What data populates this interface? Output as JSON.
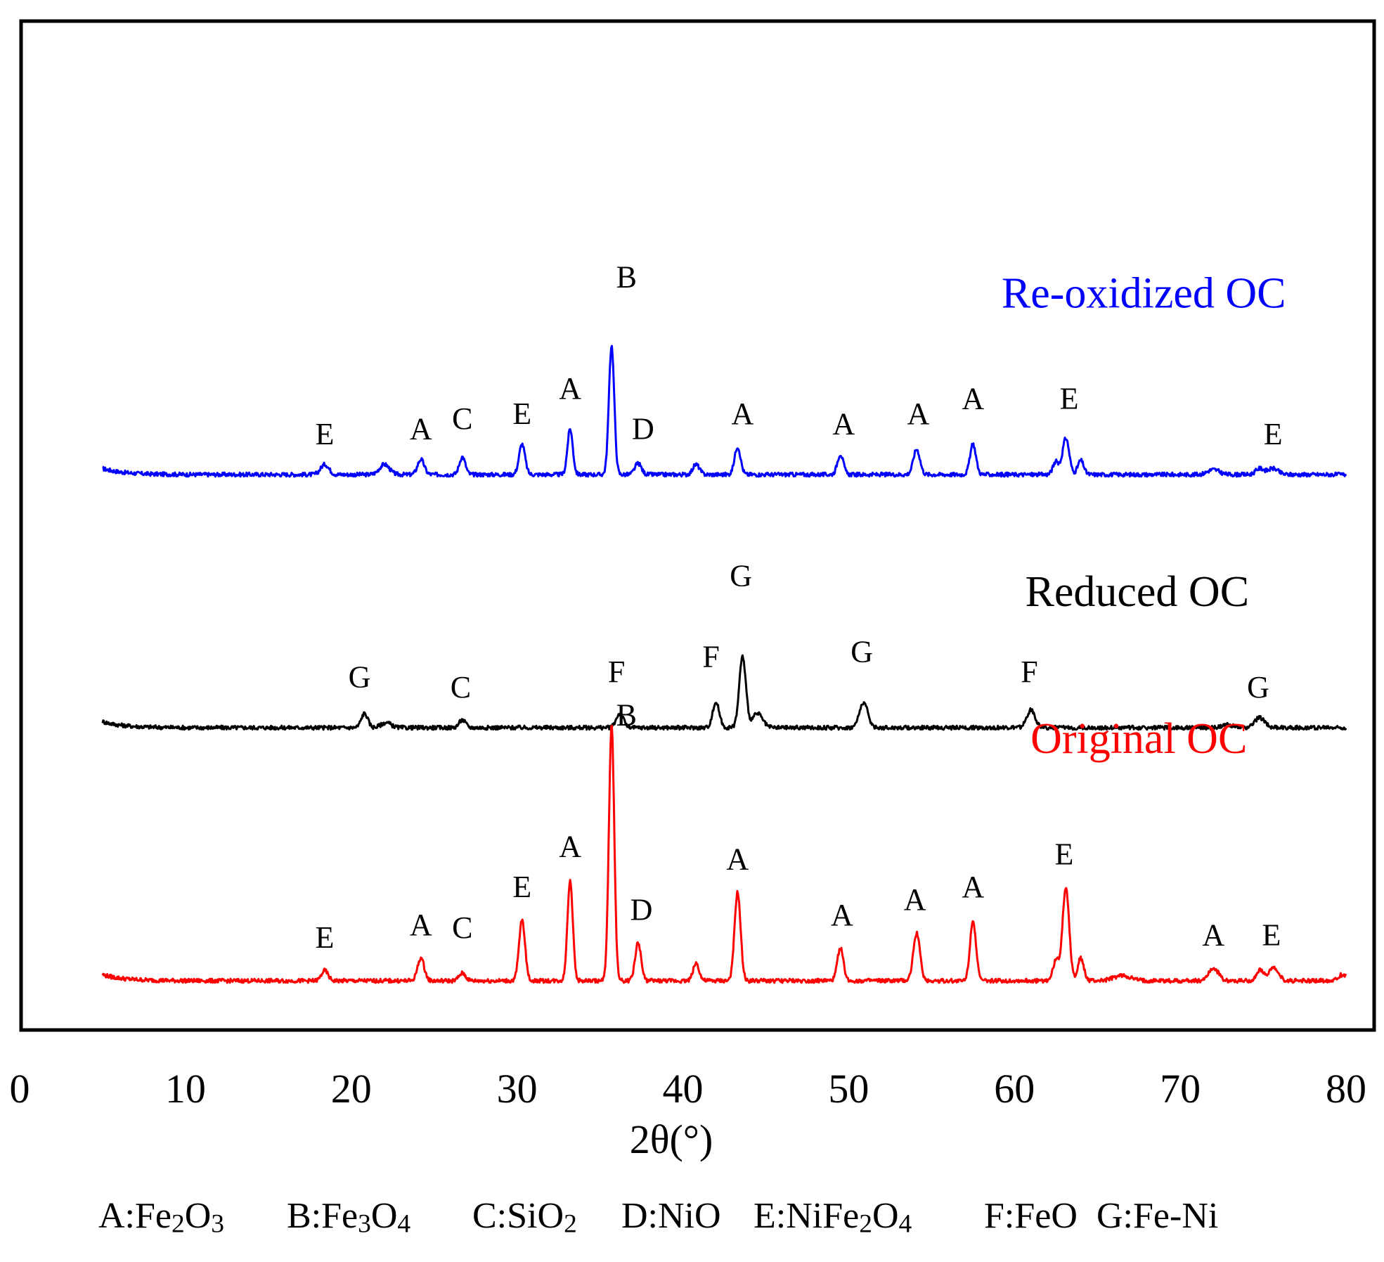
{
  "chart_data": {
    "type": "line",
    "title": "",
    "xlabel": "2θ(°)",
    "ylabel": "",
    "xlim": [
      0,
      80
    ],
    "xticks": [
      0,
      10,
      20,
      30,
      40,
      50,
      60,
      70,
      80
    ],
    "grid": false,
    "series": [
      {
        "name": "Re-oxidized OC",
        "color": "#0000ff",
        "baseline": 1.0,
        "noise": 0.008,
        "peaks": [
          {
            "x": 18.4,
            "h": 0.02,
            "w": 0.25
          },
          {
            "x": 22.0,
            "h": 0.02,
            "w": 0.3
          },
          {
            "x": 24.2,
            "h": 0.03,
            "w": 0.2
          },
          {
            "x": 26.7,
            "h": 0.035,
            "w": 0.18
          },
          {
            "x": 30.3,
            "h": 0.06,
            "w": 0.18
          },
          {
            "x": 33.2,
            "h": 0.09,
            "w": 0.16
          },
          {
            "x": 35.7,
            "h": 0.255,
            "w": 0.16
          },
          {
            "x": 37.3,
            "h": 0.022,
            "w": 0.2
          },
          {
            "x": 40.8,
            "h": 0.02,
            "w": 0.2
          },
          {
            "x": 43.3,
            "h": 0.055,
            "w": 0.18
          },
          {
            "x": 49.5,
            "h": 0.04,
            "w": 0.18
          },
          {
            "x": 54.1,
            "h": 0.05,
            "w": 0.2
          },
          {
            "x": 57.5,
            "h": 0.06,
            "w": 0.18
          },
          {
            "x": 62.5,
            "h": 0.025,
            "w": 0.18
          },
          {
            "x": 63.1,
            "h": 0.072,
            "w": 0.2
          },
          {
            "x": 64.0,
            "h": 0.028,
            "w": 0.18
          },
          {
            "x": 72.0,
            "h": 0.01,
            "w": 0.35
          },
          {
            "x": 74.8,
            "h": 0.012,
            "w": 0.25
          },
          {
            "x": 75.6,
            "h": 0.012,
            "w": 0.3
          }
        ]
      },
      {
        "name": "Reduced OC",
        "color": "#000000",
        "baseline": 0.5,
        "noise": 0.008,
        "peaks": [
          {
            "x": 20.8,
            "h": 0.028,
            "w": 0.2
          },
          {
            "x": 22.1,
            "h": 0.01,
            "w": 0.3
          },
          {
            "x": 26.7,
            "h": 0.015,
            "w": 0.2
          },
          {
            "x": 36.2,
            "h": 0.028,
            "w": 0.22
          },
          {
            "x": 42.0,
            "h": 0.05,
            "w": 0.2
          },
          {
            "x": 43.6,
            "h": 0.14,
            "w": 0.2
          },
          {
            "x": 44.5,
            "h": 0.028,
            "w": 0.3
          },
          {
            "x": 50.9,
            "h": 0.05,
            "w": 0.25
          },
          {
            "x": 61.0,
            "h": 0.035,
            "w": 0.25
          },
          {
            "x": 72.9,
            "h": 0.006,
            "w": 0.3
          },
          {
            "x": 74.8,
            "h": 0.02,
            "w": 0.3
          }
        ]
      },
      {
        "name": "Original OC",
        "color": "#ff0000",
        "baseline": 0.0,
        "noise": 0.008,
        "peaks": [
          {
            "x": 18.4,
            "h": 0.02,
            "w": 0.2
          },
          {
            "x": 24.2,
            "h": 0.045,
            "w": 0.2
          },
          {
            "x": 26.7,
            "h": 0.015,
            "w": 0.2
          },
          {
            "x": 30.3,
            "h": 0.12,
            "w": 0.18
          },
          {
            "x": 33.2,
            "h": 0.2,
            "w": 0.16
          },
          {
            "x": 35.7,
            "h": 0.505,
            "w": 0.16
          },
          {
            "x": 37.3,
            "h": 0.075,
            "w": 0.18
          },
          {
            "x": 40.8,
            "h": 0.035,
            "w": 0.18
          },
          {
            "x": 43.3,
            "h": 0.175,
            "w": 0.18
          },
          {
            "x": 49.5,
            "h": 0.065,
            "w": 0.18
          },
          {
            "x": 54.1,
            "h": 0.095,
            "w": 0.2
          },
          {
            "x": 57.5,
            "h": 0.12,
            "w": 0.18
          },
          {
            "x": 62.5,
            "h": 0.04,
            "w": 0.18
          },
          {
            "x": 63.1,
            "h": 0.185,
            "w": 0.2
          },
          {
            "x": 64.0,
            "h": 0.045,
            "w": 0.18
          },
          {
            "x": 66.5,
            "h": 0.01,
            "w": 0.5
          },
          {
            "x": 72.0,
            "h": 0.025,
            "w": 0.3
          },
          {
            "x": 74.8,
            "h": 0.02,
            "w": 0.2
          },
          {
            "x": 75.6,
            "h": 0.025,
            "w": 0.3
          },
          {
            "x": 79.8,
            "h": 0.012,
            "w": 0.3
          }
        ]
      }
    ],
    "peak_labels": [
      {
        "series": "Re-oxidized OC",
        "x": 18.4,
        "y": 1.06,
        "text": "E"
      },
      {
        "series": "Re-oxidized OC",
        "x": 24.2,
        "y": 1.07,
        "text": "A"
      },
      {
        "series": "Re-oxidized OC",
        "x": 26.7,
        "y": 1.09,
        "text": "C"
      },
      {
        "series": "Re-oxidized OC",
        "x": 30.3,
        "y": 1.1,
        "text": "E"
      },
      {
        "series": "Re-oxidized OC",
        "x": 33.2,
        "y": 1.15,
        "text": "A"
      },
      {
        "series": "Re-oxidized OC",
        "x": 36.6,
        "y": 1.37,
        "text": "B"
      },
      {
        "series": "Re-oxidized OC",
        "x": 37.6,
        "y": 1.07,
        "text": "D"
      },
      {
        "series": "Re-oxidized OC",
        "x": 43.6,
        "y": 1.1,
        "text": "A"
      },
      {
        "series": "Re-oxidized OC",
        "x": 49.7,
        "y": 1.08,
        "text": "A"
      },
      {
        "series": "Re-oxidized OC",
        "x": 54.2,
        "y": 1.1,
        "text": "A"
      },
      {
        "series": "Re-oxidized OC",
        "x": 57.5,
        "y": 1.13,
        "text": "A"
      },
      {
        "series": "Re-oxidized OC",
        "x": 63.3,
        "y": 1.13,
        "text": "E"
      },
      {
        "series": "Re-oxidized OC",
        "x": 75.6,
        "y": 1.06,
        "text": "E"
      },
      {
        "series": "Reduced OC",
        "x": 20.5,
        "y": 0.58,
        "text": "G"
      },
      {
        "series": "Reduced OC",
        "x": 26.6,
        "y": 0.56,
        "text": "C"
      },
      {
        "series": "Reduced OC",
        "x": 36.0,
        "y": 0.59,
        "text": "F"
      },
      {
        "series": "Reduced OC",
        "x": 41.7,
        "y": 0.62,
        "text": "F"
      },
      {
        "series": "Reduced OC",
        "x": 43.5,
        "y": 0.78,
        "text": "G"
      },
      {
        "series": "Reduced OC",
        "x": 50.8,
        "y": 0.63,
        "text": "G"
      },
      {
        "series": "Reduced OC",
        "x": 60.9,
        "y": 0.59,
        "text": "F"
      },
      {
        "series": "Reduced OC",
        "x": 74.7,
        "y": 0.56,
        "text": "G"
      },
      {
        "series": "Original OC",
        "x": 18.4,
        "y": 0.065,
        "text": "E"
      },
      {
        "series": "Original OC",
        "x": 24.2,
        "y": 0.09,
        "text": "A"
      },
      {
        "series": "Original OC",
        "x": 26.7,
        "y": 0.085,
        "text": "C"
      },
      {
        "series": "Original OC",
        "x": 30.3,
        "y": 0.165,
        "text": "E"
      },
      {
        "series": "Original OC",
        "x": 33.2,
        "y": 0.245,
        "text": "A"
      },
      {
        "series": "Original OC",
        "x": 36.6,
        "y": 0.505,
        "text": "B"
      },
      {
        "series": "Original OC",
        "x": 37.5,
        "y": 0.12,
        "text": "D"
      },
      {
        "series": "Original OC",
        "x": 43.3,
        "y": 0.22,
        "text": "A"
      },
      {
        "series": "Original OC",
        "x": 49.6,
        "y": 0.11,
        "text": "A"
      },
      {
        "series": "Original OC",
        "x": 54.0,
        "y": 0.14,
        "text": "A"
      },
      {
        "series": "Original OC",
        "x": 57.5,
        "y": 0.165,
        "text": "A"
      },
      {
        "series": "Original OC",
        "x": 63.0,
        "y": 0.23,
        "text": "E"
      },
      {
        "series": "Original OC",
        "x": 72.0,
        "y": 0.07,
        "text": "A"
      },
      {
        "series": "Original OC",
        "x": 75.5,
        "y": 0.07,
        "text": "E"
      }
    ],
    "series_labels": [
      {
        "text": "Re-oxidized OC",
        "color": "#0000ff",
        "x": 67.8,
        "y": 1.33
      },
      {
        "text": "Reduced OC",
        "color": "#000000",
        "x": 67.4,
        "y": 0.74
      },
      {
        "text": "Original OC",
        "color": "#ff0000",
        "x": 67.5,
        "y": 0.45
      }
    ],
    "legend": [
      {
        "key": "A",
        "parts": [
          "A:Fe",
          "2",
          "O",
          "3",
          ""
        ]
      },
      {
        "key": "B",
        "parts": [
          "B:Fe",
          "3",
          "O",
          "4",
          ""
        ]
      },
      {
        "key": "C",
        "parts": [
          "C:SiO",
          "2",
          "",
          "",
          ""
        ]
      },
      {
        "key": "D",
        "parts": [
          "D:NiO",
          "",
          "",
          "",
          ""
        ]
      },
      {
        "key": "E",
        "parts": [
          "E:NiFe",
          "2",
          "O",
          "4",
          ""
        ]
      },
      {
        "key": "F",
        "parts": [
          "F:FeO",
          "",
          "",
          "",
          ""
        ]
      },
      {
        "key": "G",
        "parts": [
          "G:Fe-Ni",
          "",
          "",
          "",
          ""
        ]
      }
    ]
  }
}
